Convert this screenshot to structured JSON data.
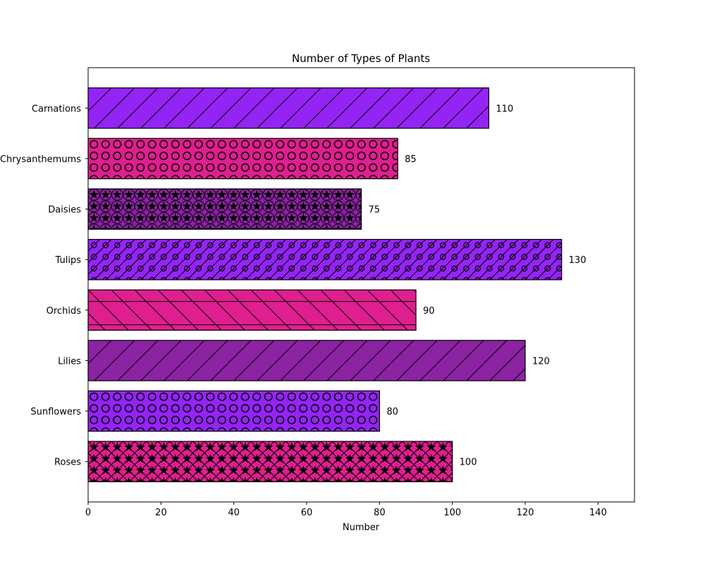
{
  "chart_data": {
    "type": "bar",
    "orientation": "horizontal",
    "title": "Number of Types of Plants",
    "xlabel": "Number",
    "ylabel": "",
    "xlim": [
      0,
      150
    ],
    "xticks": [
      0,
      20,
      40,
      60,
      80,
      100,
      120,
      140
    ],
    "grid": false,
    "categories": [
      "Roses",
      "Sunflowers",
      "Lilies",
      "Orchids",
      "Tulips",
      "Daisies",
      "Chrysanthemums",
      "Carnations"
    ],
    "values": [
      100,
      80,
      120,
      90,
      130,
      75,
      85,
      110
    ],
    "bar_colors": [
      "#df1f8f",
      "#9424f4",
      "#8b23a3",
      "#df1f8f",
      "#9424f4",
      "#8b23a3",
      "#df1f8f",
      "#9424f4"
    ],
    "hatches": [
      "star-x",
      "circle",
      "diagonal",
      "cross-diagonal",
      "circle-diagonal",
      "star-circle",
      "circle",
      "diagonal"
    ],
    "edge_color": "#000000"
  }
}
